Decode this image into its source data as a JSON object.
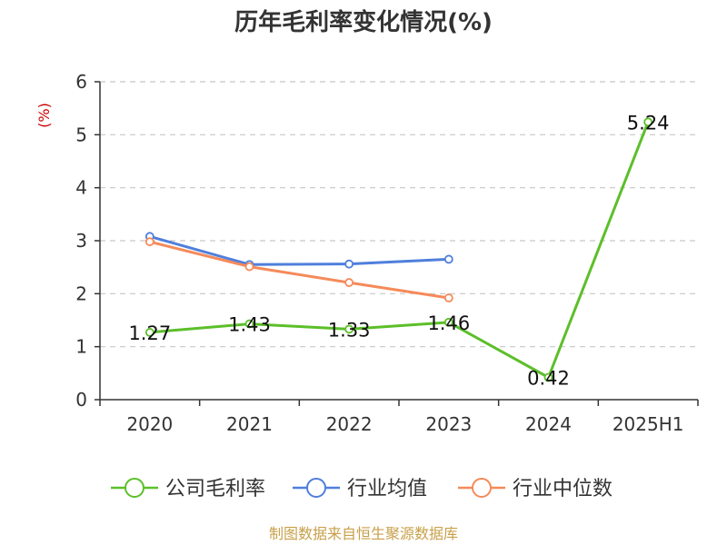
{
  "chart_data": {
    "type": "line",
    "title": "历年毛利率变化情况(%)",
    "ylabel": "(%)",
    "categories": [
      "2020",
      "2021",
      "2022",
      "2023",
      "2024",
      "2025H1"
    ],
    "ylim": [
      0,
      6
    ],
    "yticks": [
      0,
      1,
      2,
      3,
      4,
      5,
      6
    ],
    "grid": true,
    "legend_position": "bottom",
    "series": [
      {
        "name": "公司毛利率",
        "color": "#5cbf2a",
        "values": [
          1.27,
          1.43,
          1.33,
          1.46,
          0.42,
          5.24
        ],
        "labels": [
          "1.27",
          "1.43",
          "1.33",
          "1.46",
          "0.42",
          "5.24"
        ]
      },
      {
        "name": "行业均值",
        "color": "#4f7fdc",
        "values": [
          3.08,
          2.55,
          2.56,
          2.65,
          null,
          null
        ]
      },
      {
        "name": "行业中位数",
        "color": "#f58a5a",
        "values": [
          2.98,
          2.51,
          2.21,
          1.92,
          null,
          null
        ]
      }
    ]
  },
  "footer": {
    "source": "制图数据来自恒生聚源数据库"
  }
}
